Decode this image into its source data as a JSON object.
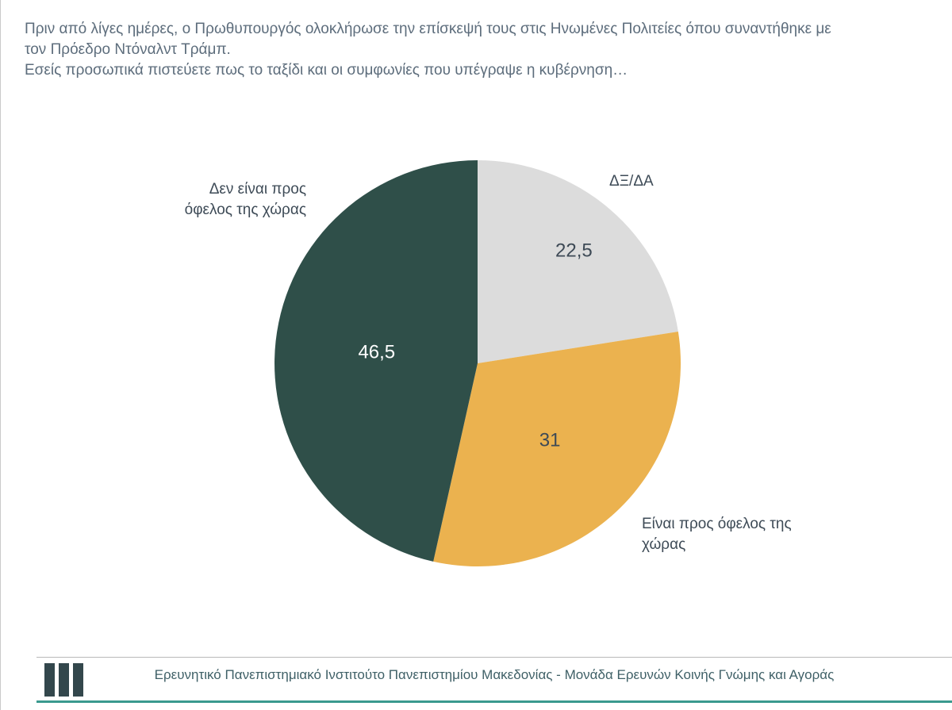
{
  "question": {
    "paragraph1": "Πριν από λίγες ημέρες, ο Πρωθυπουργός ολοκλήρωσε την επίσκεψή τους στις Ηνωμένες Πολιτείες όπου συναντήθηκε με\nτον Πρόεδρο Ντόναλντ Τράμπ.",
    "paragraph2": "Εσείς προσωπικά πιστεύετε πως το ταξίδι και οι συμφωνίες που υπέγραψε η κυβέρνηση…"
  },
  "chart_data": {
    "type": "pie",
    "title": "",
    "start_angle_deg": 0,
    "direction": "clockwise",
    "legend_position": "callout-labels",
    "slices": [
      {
        "label": "ΔΞ/ΔΑ",
        "value": 22.5,
        "display_value": "22,5",
        "color": "#dcdcdc",
        "value_text_color": "#3e4a56"
      },
      {
        "label": "Είναι προς όφελος της χώρας",
        "value": 31,
        "display_value": "31",
        "color": "#ebb24f",
        "value_text_color": "#3e4a56"
      },
      {
        "label": "Δεν είναι προς όφελος της χώρας",
        "value": 46.5,
        "display_value": "46,5",
        "color": "#2f4f49",
        "value_text_color": "#ffffff"
      }
    ]
  },
  "callouts": {
    "dk_da": "ΔΞ/ΔΑ",
    "not_benefit_line1": "Δεν είναι προς",
    "not_benefit_line2": "όφελος της χώρας",
    "benefit_line1": "Είναι προς όφελος της",
    "benefit_line2": "χώρας"
  },
  "footer": {
    "text": "Ερευνητικό Πανεπιστημιακό Ινστιτούτο Πανεπιστημίου Μακεδονίας - Μονάδα Ερευνών Κοινής Γνώμης και Αγοράς"
  },
  "colors": {
    "question_text": "#5d6d7c",
    "callout_text": "#3e4b57",
    "slice_dark_green": "#2f4f49",
    "slice_yellow": "#ebb24f",
    "slice_gray": "#dcdcdc",
    "footer_text": "#3f6067",
    "footer_rule": "#b9b9b9",
    "accent_line": "#3a9a8e",
    "logo": "#33474c"
  }
}
